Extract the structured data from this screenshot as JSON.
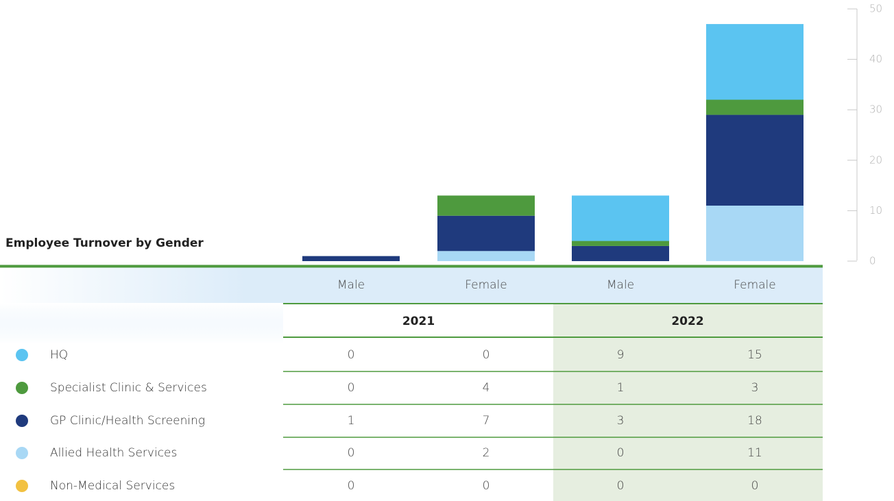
{
  "chart_data": {
    "type": "stacked-bar",
    "title": "Employee Turnover by Gender",
    "categories": [
      "Male",
      "Female",
      "Male",
      "Female"
    ],
    "groups": [
      "2021",
      "2022"
    ],
    "series": [
      {
        "name": "HQ",
        "color": "#5bc4f1",
        "values": [
          0,
          0,
          9,
          15
        ]
      },
      {
        "name": "Specialist Clinic & Services",
        "color": "#4e9a3e",
        "values": [
          0,
          4,
          1,
          3
        ]
      },
      {
        "name": "GP Clinic/Health Screening",
        "color": "#1f3a7d",
        "values": [
          1,
          7,
          3,
          18
        ]
      },
      {
        "name": "Allied Health Services",
        "color": "#a8d8f5",
        "values": [
          0,
          2,
          0,
          11
        ]
      },
      {
        "name": "Non-Medical Services",
        "color": "#f2c141",
        "values": [
          0,
          0,
          0,
          0
        ]
      }
    ],
    "ylim": [
      0,
      50
    ],
    "yticks": [
      0,
      10,
      20,
      30,
      40,
      50
    ]
  }
}
